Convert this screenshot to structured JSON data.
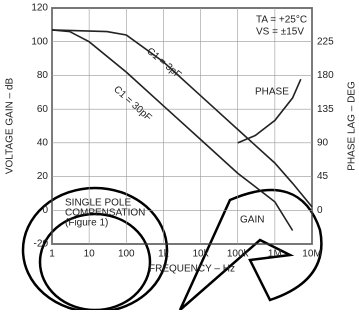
{
  "chart_data": {
    "type": "line",
    "xlabel": "FREQUENCY – Hz",
    "ylabel": "VOLTAGE GAIN – dB",
    "y2label": "PHASE LAG – DEG",
    "log_x": true,
    "grid": true,
    "xlim": [
      1,
      10000000
    ],
    "xticks": [
      1,
      10,
      100,
      {
        "value": 1000,
        "label": "1k"
      },
      {
        "value": 10000,
        "label": "10k"
      },
      {
        "value": 100000,
        "label": "100k"
      },
      {
        "value": 1000000,
        "label": "1M"
      },
      {
        "value": 10000000,
        "label": "10M"
      }
    ],
    "ylim": [
      -20,
      120
    ],
    "yticks": [
      -20,
      0,
      20,
      40,
      60,
      80,
      100,
      120
    ],
    "y2lim": [
      -45,
      270
    ],
    "y2ticks": [
      0,
      45,
      90,
      135,
      180,
      225
    ],
    "series": [
      {
        "name": "C1 = 3pF",
        "color": "#222222",
        "x": [
          1,
          30,
          100,
          1000,
          10000,
          100000,
          1000000,
          3000000,
          10000000
        ],
        "values": [
          107,
          106,
          104,
          88,
          68,
          48,
          28,
          16,
          2
        ]
      },
      {
        "name": "C1 = 30pF",
        "color": "#222222",
        "x": [
          1,
          3,
          10,
          100,
          1000,
          10000,
          100000,
          1000000,
          3000000
        ],
        "values": [
          107,
          106,
          100,
          82,
          62,
          42,
          22,
          5,
          -12
        ]
      },
      {
        "name": "PHASE",
        "color": "#222222",
        "axis": "y2",
        "x": [
          100000,
          300000,
          1000000,
          3000000,
          5000000
        ],
        "values": [
          90,
          100,
          120,
          150,
          175
        ]
      }
    ],
    "annotations": [
      "TA = +25°C",
      "VS = ±15V",
      "GAIN",
      "SINGLE POLE",
      "COMPENSATION",
      "(Figure 1)"
    ]
  }
}
